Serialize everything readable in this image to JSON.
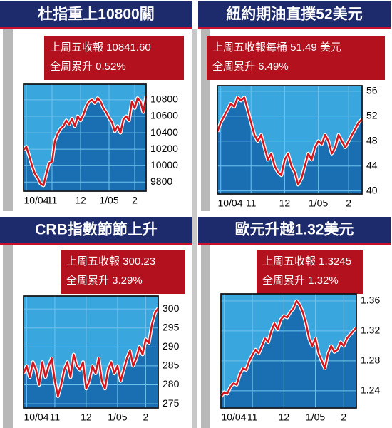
{
  "chart_data": [
    {
      "type": "line",
      "title": "杜指重上10800關",
      "annotations": [
        "上周五收報 10841.60",
        "全周累升 0.52%"
      ],
      "categories": [
        null,
        "10/04",
        null,
        null,
        null,
        null,
        null,
        null,
        null,
        null,
        "11",
        null,
        null,
        null,
        null,
        null,
        null,
        null,
        null,
        null,
        "12",
        null,
        null,
        null,
        null,
        null,
        null,
        null,
        null,
        null,
        "1/05",
        null,
        null,
        null,
        null,
        null,
        null,
        null,
        null,
        "2",
        null,
        null,
        null,
        null
      ],
      "values": [
        10190,
        10230,
        10120,
        10000,
        9900,
        9850,
        9780,
        9760,
        9900,
        10030,
        10050,
        10300,
        10390,
        10450,
        10480,
        10550,
        10500,
        10570,
        10480,
        10600,
        10550,
        10620,
        10720,
        10780,
        10800,
        10760,
        10820,
        10780,
        10700,
        10650,
        10580,
        10530,
        10420,
        10480,
        10400,
        10560,
        10600,
        10550,
        10780,
        10700,
        10820,
        10780,
        10650,
        10840
      ],
      "color": "#d7141c",
      "ylim": [
        9690,
        10990
      ],
      "yticks": [
        9800,
        10000,
        10200,
        10400,
        10600,
        10800
      ],
      "grid": true
    },
    {
      "type": "line",
      "title": "紐約期油直撲52美元",
      "annotations": [
        "上周五收報每桶 51.49 美元",
        "全周累升 6.49%"
      ],
      "categories": [
        null,
        "10/04",
        null,
        null,
        null,
        null,
        null,
        null,
        null,
        null,
        "11",
        null,
        null,
        null,
        null,
        null,
        null,
        null,
        null,
        null,
        "12",
        null,
        null,
        null,
        null,
        null,
        null,
        null,
        null,
        null,
        "1/05",
        null,
        null,
        null,
        null,
        null,
        null,
        null,
        null,
        "2",
        null,
        null,
        null,
        null
      ],
      "values": [
        49.5,
        51,
        52,
        53,
        54,
        53.5,
        55,
        54.5,
        55,
        53,
        51,
        49,
        48,
        49,
        47,
        45,
        46,
        44,
        43,
        42.5,
        45,
        46,
        44,
        43,
        41,
        42,
        44,
        46,
        45,
        47,
        48,
        47.5,
        49,
        48,
        46,
        47,
        49,
        48,
        47,
        48,
        49,
        50,
        51,
        51.5
      ],
      "color": "#d7141c",
      "ylim": [
        39.5,
        56.9
      ],
      "yticks": [
        40,
        44,
        48,
        52,
        56
      ],
      "grid": true
    },
    {
      "type": "line",
      "title": "CRB指數節節上升",
      "annotations": [
        "上周五收報 300.23",
        "全周累升 3.29%"
      ],
      "categories": [
        null,
        "10/04",
        null,
        null,
        null,
        null,
        null,
        null,
        null,
        null,
        "11",
        null,
        null,
        null,
        null,
        null,
        null,
        null,
        null,
        null,
        "12",
        null,
        null,
        null,
        null,
        null,
        null,
        null,
        null,
        null,
        "1/05",
        null,
        null,
        null,
        null,
        null,
        null,
        null,
        null,
        "2",
        null,
        null,
        null,
        null
      ],
      "values": [
        283,
        285,
        282,
        286,
        284,
        280,
        286,
        282,
        285,
        287,
        281,
        277,
        280,
        284,
        286,
        282,
        288,
        285,
        284,
        286,
        279,
        281,
        285,
        283,
        287,
        281,
        279,
        284,
        286,
        283,
        285,
        281,
        284,
        287,
        289,
        285,
        287,
        290,
        288,
        292,
        291,
        296,
        299,
        300.2
      ],
      "color": "#d7141c",
      "ylim": [
        273.9,
        303.4
      ],
      "yticks": [
        275,
        280,
        285,
        290,
        295,
        300
      ],
      "grid": true
    },
    {
      "type": "line",
      "title": "歐元升越1.32美元",
      "annotations": [
        "上周五收報 1.3245",
        "全周累升 1.32%"
      ],
      "categories": [
        null,
        "10/04",
        null,
        null,
        null,
        null,
        null,
        null,
        null,
        null,
        "11",
        null,
        null,
        null,
        null,
        null,
        null,
        null,
        null,
        null,
        "12",
        null,
        null,
        null,
        null,
        null,
        null,
        null,
        null,
        null,
        "1/05",
        null,
        null,
        null,
        null,
        null,
        null,
        null,
        null,
        "2",
        null,
        null,
        null,
        null
      ],
      "values": [
        1.232,
        1.238,
        1.236,
        1.245,
        1.25,
        1.248,
        1.262,
        1.27,
        1.268,
        1.28,
        1.288,
        1.295,
        1.29,
        1.3,
        1.31,
        1.305,
        1.32,
        1.33,
        1.322,
        1.335,
        1.34,
        1.338,
        1.345,
        1.35,
        1.36,
        1.355,
        1.345,
        1.33,
        1.31,
        1.3,
        1.31,
        1.29,
        1.28,
        1.27,
        1.29,
        1.3,
        1.292,
        1.295,
        1.305,
        1.3,
        1.31,
        1.315,
        1.32,
        1.3245
      ],
      "color": "#d7141c",
      "ylim": [
        1.217,
        1.3695
      ],
      "yticks": [
        1.24,
        1.28,
        1.32,
        1.36
      ],
      "grid": true
    }
  ]
}
